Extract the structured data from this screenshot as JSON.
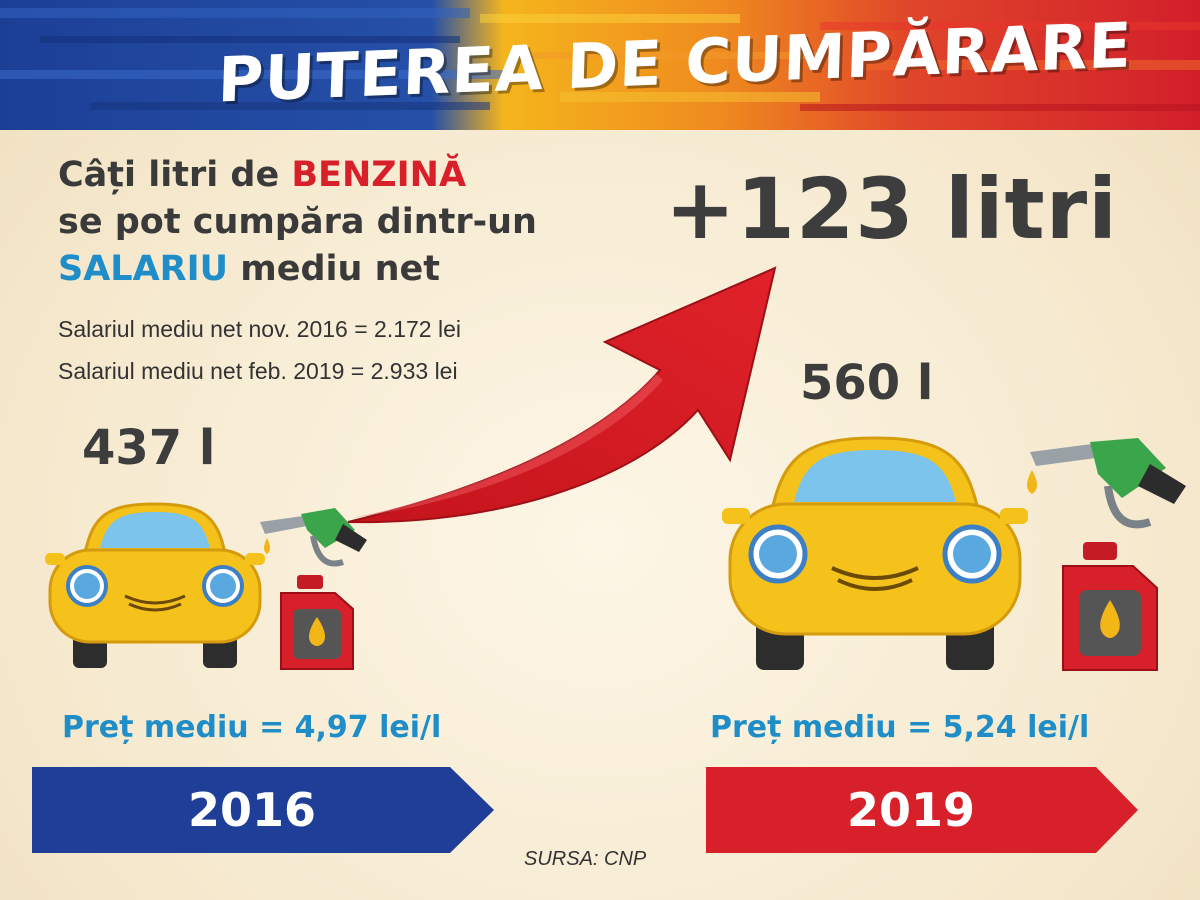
{
  "title": "PUTEREA DE CUMPĂRARE",
  "question": {
    "line1_prefix": "Câți litri de ",
    "line1_highlight": "BENZINĂ",
    "line2": "se pot cumpăra dintr-un",
    "line3_highlight": "SALARIU",
    "line3_suffix": " mediu net"
  },
  "salary_2016": "Salariul mediu net nov. 2016 = 2.172 lei",
  "salary_2019": "Salariul mediu net feb. 2019 = 2.933 lei",
  "increase": "+123 litri",
  "liters_2016": "437 l",
  "liters_2019": "560 l",
  "price_2016": "Preț mediu = 4,97 lei/l",
  "price_2019": "Preț mediu = 5,24 lei/l",
  "year_2016": "2016",
  "year_2019": "2019",
  "source": "SURSA: CNP",
  "colors": {
    "blue": "#1f3e97",
    "red": "#d8202b",
    "orange": "#ee7d1e",
    "yellow_car": "#f5c21b",
    "text_accent_blue": "#1f8ec8"
  },
  "icons": [
    "car-icon",
    "fuel-nozzle-icon",
    "oil-canister-icon",
    "arrow-up-icon"
  ]
}
